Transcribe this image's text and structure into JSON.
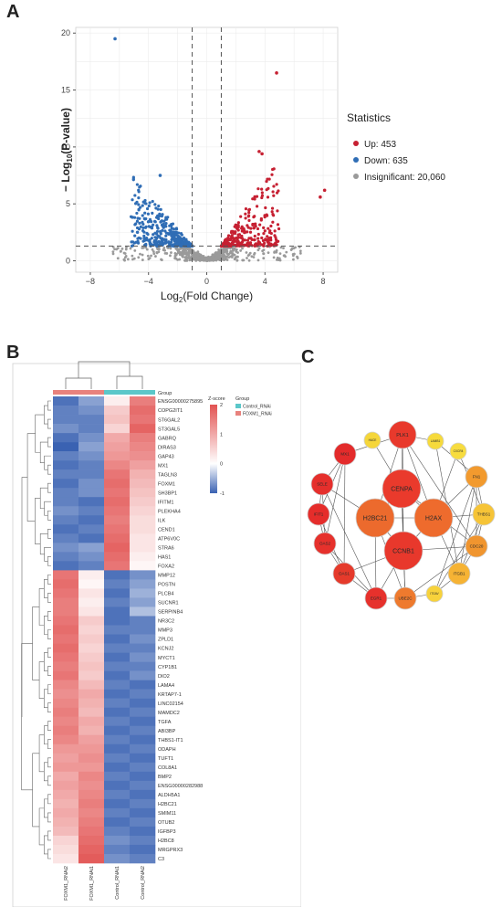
{
  "panels": {
    "a": "A",
    "b": "B",
    "c": "C"
  },
  "volcano": {
    "chart_data": {
      "type": "scatter",
      "xlabel": "Log2(Fold Change)",
      "ylabel": "−Log10(P-value)",
      "xlim": [
        -9,
        9
      ],
      "ylim": [
        -1,
        20.5
      ],
      "xticks": [
        -8,
        -4,
        0,
        4,
        8
      ],
      "yticks": [
        0,
        5,
        10,
        15,
        20
      ],
      "thresholds": {
        "x": [
          -1,
          1
        ],
        "y": 1.3
      },
      "grid": true,
      "legend_position": "right",
      "legend_title": "Statistics",
      "series": [
        {
          "name": "Up: 453",
          "color": "#c62032"
        },
        {
          "name": "Down: 635",
          "color": "#2f6db5"
        },
        {
          "name": "Insignificant: 20,060",
          "color": "#9a9a9a"
        }
      ],
      "notable_points": [
        {
          "x": -6.3,
          "y": 19.5,
          "series": "Down"
        },
        {
          "x": 4.8,
          "y": 16.5,
          "series": "Up"
        },
        {
          "x": 8.1,
          "y": 6.2,
          "series": "Up"
        },
        {
          "x": 7.8,
          "y": 5.6,
          "series": "Up"
        },
        {
          "x": 3.6,
          "y": 9.6,
          "series": "Up"
        },
        {
          "x": 3.8,
          "y": 9.4,
          "series": "Up"
        },
        {
          "x": -3.2,
          "y": 7.5,
          "series": "Down"
        }
      ]
    }
  },
  "heatmap": {
    "chart_data": {
      "type": "heatmap",
      "group_label": "Group",
      "legend_title": "Group",
      "groups": [
        "Control_RNAi",
        "FOXM1_RNAi"
      ],
      "group_colors": {
        "Control_RNAi": "#5bc7c9",
        "FOXM1_RNAi": "#e8827d"
      },
      "colorbar": {
        "title": "Z-score",
        "ticks": [
          2,
          1,
          0,
          -1
        ],
        "range": [
          -1,
          2
        ]
      },
      "columns": [
        "FOXM1_RNAi2",
        "FOXM1_RNAi1",
        "Control_RNAi1",
        "Control_RNAi2"
      ],
      "column_groups": [
        "FOXM1_RNAi",
        "FOXM1_RNAi",
        "Control_RNAi",
        "Control_RNAi"
      ],
      "rows": [
        "ENSG00000275895",
        "COPG2IT1",
        "ST6GAL2",
        "ST3GAL5",
        "GABRQ",
        "DIRAS3",
        "GAP43",
        "MX1",
        "TAGLN3",
        "FOXM1",
        "SH3BP1",
        "IFITM1",
        "PLEKHA4",
        "ILK",
        "CEND1",
        "ATP6V0C",
        "STRA6",
        "HAS1",
        "FOXA2",
        "MMP12",
        "POSTN",
        "PLCB4",
        "SUCNR1",
        "SERPINB4",
        "NR3C2",
        "MMP3",
        "ZPLD1",
        "KCNJ2",
        "MYCT1",
        "CYP1B1",
        "DIO2",
        "LAMA4",
        "KRTAP7-1",
        "LINC02154",
        "MAMDC2",
        "TGFA",
        "ABI3BP",
        "THBS1-IT1",
        "ODAPH",
        "TUFT1",
        "COL8A1",
        "BMP2",
        "ENSG00000282988",
        "ALDH5A1",
        "H2BC21",
        "SMIM11",
        "OTUB2",
        "IGFBP3",
        "H2BC8",
        "MRGPRX3",
        "C3"
      ],
      "values": [
        [
          -0.9,
          -0.6,
          0.2,
          1.5
        ],
        [
          -0.8,
          -0.7,
          0.6,
          1.7
        ],
        [
          -0.8,
          -0.8,
          0.7,
          1.6
        ],
        [
          -0.7,
          -0.8,
          0.5,
          1.8
        ],
        [
          -0.9,
          -0.7,
          1.0,
          1.5
        ],
        [
          -1.0,
          -0.6,
          1.1,
          1.4
        ],
        [
          -0.8,
          -0.7,
          1.2,
          1.3
        ],
        [
          -0.9,
          -0.8,
          1.4,
          1.1
        ],
        [
          -0.8,
          -0.8,
          1.6,
          0.9
        ],
        [
          -0.9,
          -0.7,
          1.7,
          0.8
        ],
        [
          -0.8,
          -0.7,
          1.6,
          0.7
        ],
        [
          -0.8,
          -0.9,
          1.7,
          0.6
        ],
        [
          -0.7,
          -0.8,
          1.6,
          0.5
        ],
        [
          -0.8,
          -0.9,
          1.5,
          0.4
        ],
        [
          -0.9,
          -0.8,
          1.6,
          0.4
        ],
        [
          -0.8,
          -0.9,
          1.7,
          0.3
        ],
        [
          -0.7,
          -0.6,
          1.8,
          0.3
        ],
        [
          -0.8,
          -0.7,
          1.7,
          0.2
        ],
        [
          -0.9,
          -0.8,
          1.6,
          0.1
        ],
        [
          1.6,
          0.2,
          -0.9,
          -0.7
        ],
        [
          1.7,
          0.1,
          -0.8,
          -0.6
        ],
        [
          1.6,
          0.3,
          -0.9,
          -0.5
        ],
        [
          1.5,
          0.2,
          -0.8,
          -0.6
        ],
        [
          1.5,
          0.3,
          -0.9,
          -0.4
        ],
        [
          1.6,
          0.6,
          -0.9,
          -0.8
        ],
        [
          1.7,
          0.5,
          -0.8,
          -0.8
        ],
        [
          1.6,
          0.6,
          -0.9,
          -0.7
        ],
        [
          1.7,
          0.5,
          -0.8,
          -0.8
        ],
        [
          1.6,
          0.6,
          -0.9,
          -0.7
        ],
        [
          1.5,
          0.7,
          -0.8,
          -0.8
        ],
        [
          1.6,
          0.6,
          -0.9,
          -0.7
        ],
        [
          1.4,
          0.8,
          -0.8,
          -0.9
        ],
        [
          1.3,
          1.0,
          -0.9,
          -0.8
        ],
        [
          1.4,
          0.9,
          -0.8,
          -0.9
        ],
        [
          1.5,
          0.8,
          -0.9,
          -0.8
        ],
        [
          1.4,
          1.0,
          -0.8,
          -0.9
        ],
        [
          1.5,
          0.9,
          -0.9,
          -0.8
        ],
        [
          1.4,
          1.1,
          -0.8,
          -0.9
        ],
        [
          1.2,
          1.2,
          -0.9,
          -0.8
        ],
        [
          1.1,
          1.3,
          -0.8,
          -0.9
        ],
        [
          1.2,
          1.2,
          -0.9,
          -0.8
        ],
        [
          1.0,
          1.4,
          -0.8,
          -0.9
        ],
        [
          1.1,
          1.3,
          -0.9,
          -0.8
        ],
        [
          1.0,
          1.4,
          -0.8,
          -0.9
        ],
        [
          0.9,
          1.5,
          -0.9,
          -0.8
        ],
        [
          1.0,
          1.4,
          -0.8,
          -0.9
        ],
        [
          0.9,
          1.5,
          -0.9,
          -0.8
        ],
        [
          0.8,
          1.6,
          -0.8,
          -0.9
        ],
        [
          0.5,
          1.7,
          -0.7,
          -0.8
        ],
        [
          0.4,
          1.8,
          -0.8,
          -0.9
        ],
        [
          0.3,
          1.9,
          -0.7,
          -0.8
        ]
      ]
    }
  },
  "network": {
    "nodes": [
      {
        "id": "PLK1",
        "label": "PLK1",
        "color": "#e8392c",
        "size": "large"
      },
      {
        "id": "MX1",
        "label": "MX1",
        "color": "#e32b2b",
        "size": "medium"
      },
      {
        "id": "HACE",
        "label": "HACE",
        "color": "#f5d63a",
        "size": "small"
      },
      {
        "id": "LAMB1",
        "label": "LAMB1",
        "color": "#f6da3c",
        "size": "small"
      },
      {
        "id": "CXCR4",
        "label": "CXCR4",
        "color": "#f7dc3f",
        "size": "small"
      },
      {
        "id": "FN1",
        "label": "FN1",
        "color": "#f29a2e",
        "size": "medium"
      },
      {
        "id": "SELE",
        "label": "SELE",
        "color": "#e52f2c",
        "size": "medium"
      },
      {
        "id": "CENPA",
        "label": "CENPA",
        "color": "#ea3a2c",
        "size": "xlarge"
      },
      {
        "id": "H2BC21",
        "label": "H2BC21",
        "color": "#ec6a2d",
        "size": "xlarge"
      },
      {
        "id": "H2AX",
        "label": "H2AX",
        "color": "#ee6b2d",
        "size": "xlarge"
      },
      {
        "id": "THBS1",
        "label": "THBS1",
        "color": "#f6c437",
        "size": "medium"
      },
      {
        "id": "IFIT1",
        "label": "IFIT1",
        "color": "#e52d2b",
        "size": "medium"
      },
      {
        "id": "OAS2",
        "label": "OAS2",
        "color": "#e6312c",
        "size": "medium"
      },
      {
        "id": "CDC20",
        "label": "CDC20",
        "color": "#f0952f",
        "size": "medium"
      },
      {
        "id": "CCNB1",
        "label": "CCNB1",
        "color": "#e8382c",
        "size": "xlarge"
      },
      {
        "id": "OAS1",
        "label": "OAS1",
        "color": "#e53a2b",
        "size": "medium"
      },
      {
        "id": "ITGB1",
        "label": "ITGB1",
        "color": "#f6b334",
        "size": "medium"
      },
      {
        "id": "ITGAV",
        "label": "ITGAV",
        "color": "#f7d23b",
        "size": "small"
      },
      {
        "id": "UBE2C",
        "label": "UBE2C",
        "color": "#ee7a2e",
        "size": "medium"
      },
      {
        "id": "EGR1",
        "label": "EGR1",
        "color": "#e6312c",
        "size": "medium"
      }
    ],
    "edges": [
      [
        "PLK1",
        "CENPA"
      ],
      [
        "PLK1",
        "H2AX"
      ],
      [
        "PLK1",
        "CCNB1"
      ],
      [
        "PLK1",
        "H2BC21"
      ],
      [
        "PLK1",
        "CDC20"
      ],
      [
        "PLK1",
        "LAMB1"
      ],
      [
        "PLK1",
        "MX1"
      ],
      [
        "CENPA",
        "H2BC21"
      ],
      [
        "CENPA",
        "H2AX"
      ],
      [
        "CENPA",
        "CCNB1"
      ],
      [
        "CENPA",
        "UBE2C"
      ],
      [
        "CENPA",
        "CDC20"
      ],
      [
        "CENPA",
        "HACE"
      ],
      [
        "H2BC21",
        "H2AX"
      ],
      [
        "H2BC21",
        "CCNB1"
      ],
      [
        "H2BC21",
        "SELE"
      ],
      [
        "H2BC21",
        "UBE2C"
      ],
      [
        "H2BC21",
        "EGR1"
      ],
      [
        "H2AX",
        "CCNB1"
      ],
      [
        "H2AX",
        "THBS1"
      ],
      [
        "H2AX",
        "FN1"
      ],
      [
        "H2AX",
        "CXCR4"
      ],
      [
        "H2AX",
        "ITGB1"
      ],
      [
        "CCNB1",
        "UBE2C"
      ],
      [
        "CCNB1",
        "CDC20"
      ],
      [
        "CCNB1",
        "EGR1"
      ],
      [
        "CCNB1",
        "OAS1"
      ],
      [
        "MX1",
        "SELE"
      ],
      [
        "MX1",
        "IFIT1"
      ],
      [
        "MX1",
        "OAS2"
      ],
      [
        "MX1",
        "OAS1"
      ],
      [
        "SELE",
        "IFIT1"
      ],
      [
        "SELE",
        "OAS2"
      ],
      [
        "SELE",
        "EGR1"
      ],
      [
        "IFIT1",
        "OAS2"
      ],
      [
        "IFIT1",
        "OAS1"
      ],
      [
        "OAS2",
        "OAS1"
      ],
      [
        "OAS2",
        "EGR1"
      ],
      [
        "FN1",
        "THBS1"
      ],
      [
        "FN1",
        "ITGB1"
      ],
      [
        "FN1",
        "ITGAV"
      ],
      [
        "FN1",
        "CDC20"
      ],
      [
        "FN1",
        "LAMB1"
      ],
      [
        "THBS1",
        "ITGB1"
      ],
      [
        "THBS1",
        "CDC20"
      ],
      [
        "THBS1",
        "ITGAV"
      ],
      [
        "ITGB1",
        "ITGAV"
      ],
      [
        "ITGB1",
        "CDC20"
      ],
      [
        "CXCR4",
        "THBS1"
      ],
      [
        "LAMB1",
        "ITGB1"
      ],
      [
        "EGR1",
        "UBE2C"
      ],
      [
        "UBE2C",
        "CDC20"
      ],
      [
        "UBE2C",
        "ITGAV"
      ],
      [
        "OAS1",
        "EGR1"
      ]
    ]
  }
}
